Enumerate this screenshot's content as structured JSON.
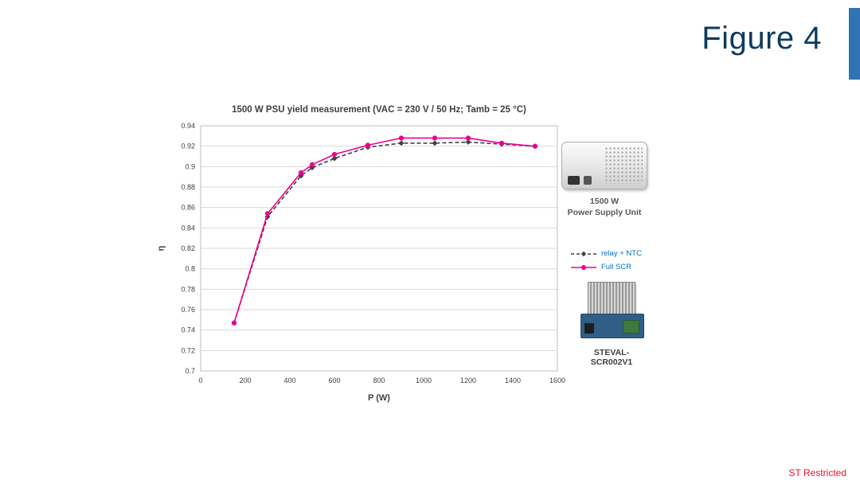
{
  "slide": {
    "figure_label": "Figure 4",
    "footer": "ST Restricted",
    "accent_color": "#2e74b5"
  },
  "chart_data": {
    "type": "line",
    "title": "1500 W PSU yield measurement (VAC = 230 V / 50 Hz; Tamb = 25 °C)",
    "xlabel": "P (W)",
    "ylabel": "η",
    "xlim": [
      0,
      1600
    ],
    "ylim": [
      0.7,
      0.94
    ],
    "x_ticks": [
      0,
      200,
      400,
      600,
      800,
      1000,
      1200,
      1400,
      1600
    ],
    "y_ticks": [
      "0.7",
      "0.72",
      "0.74",
      "0.76",
      "0.78",
      "0.8",
      "0.82",
      "0.84",
      "0.86",
      "0.88",
      "0.9",
      "0.92",
      "0.94"
    ],
    "grid": "horizontal",
    "legend_position": "right",
    "legend_text_color": "#0070C0",
    "x": [
      150,
      300,
      450,
      500,
      600,
      750,
      900,
      1050,
      1200,
      1350,
      1500
    ],
    "series": [
      {
        "name": "relay + NTC",
        "color": "#404040",
        "style": "dashed",
        "marker": "diamond",
        "values": [
          0.747,
          0.851,
          0.891,
          0.899,
          0.908,
          0.919,
          0.923,
          0.923,
          0.924,
          0.922,
          0.92
        ]
      },
      {
        "name": "Full SCR",
        "color": "#EC008C",
        "style": "solid",
        "marker": "circle",
        "values": [
          0.747,
          0.854,
          0.894,
          0.902,
          0.912,
          0.921,
          0.928,
          0.928,
          0.928,
          0.923,
          0.92
        ]
      }
    ]
  },
  "annotations": {
    "psu_label_line1": "1500 W",
    "psu_label_line2": "Power Supply Unit",
    "board_label": "STEVAL-SCR002V1"
  }
}
